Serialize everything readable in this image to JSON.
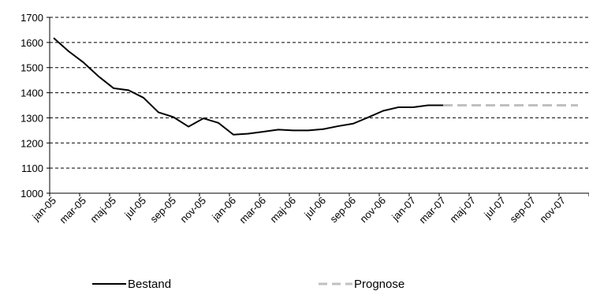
{
  "chart_data": {
    "type": "line",
    "title": "",
    "xlabel": "",
    "ylabel": "",
    "ylim": [
      1000,
      1700
    ],
    "yticks": [
      1000,
      1100,
      1200,
      1300,
      1400,
      1500,
      1600,
      1700
    ],
    "grid": "horizontal dashed",
    "legend_position": "bottom",
    "x_tick_labels": [
      "jan-05",
      "mar-05",
      "maj-05",
      "jul-05",
      "sep-05",
      "nov-05",
      "jan-06",
      "mar-06",
      "maj-06",
      "jul-06",
      "sep-06",
      "nov-06",
      "jan-07",
      "mar-07",
      "maj-07",
      "jul-07",
      "sep-07",
      "nov-07"
    ],
    "series": [
      {
        "name": "Bestand",
        "color": "#000000",
        "style": "solid",
        "x": [
          "jan-05",
          "feb-05",
          "mar-05",
          "apr-05",
          "maj-05",
          "jun-05",
          "jul-05",
          "aug-05",
          "sep-05",
          "okt-05",
          "nov-05",
          "dec-05",
          "jan-06",
          "feb-06",
          "mar-06",
          "apr-06",
          "maj-06",
          "jun-06",
          "jul-06",
          "aug-06",
          "sep-06",
          "okt-06",
          "nov-06",
          "dec-06",
          "jan-07",
          "feb-07",
          "mar-07"
        ],
        "values": [
          1618,
          1565,
          1520,
          1465,
          1418,
          1410,
          1380,
          1322,
          1303,
          1265,
          1298,
          1280,
          1233,
          1237,
          1245,
          1253,
          1250,
          1250,
          1255,
          1267,
          1277,
          1302,
          1328,
          1342,
          1342,
          1350,
          1350
        ]
      },
      {
        "name": "Prognose",
        "color": "#c0c0c0",
        "style": "dashed",
        "x": [
          "mar-07",
          "apr-07",
          "maj-07",
          "jun-07",
          "jul-07",
          "aug-07",
          "sep-07",
          "okt-07",
          "nov-07",
          "dec-07"
        ],
        "values": [
          1350,
          1350,
          1350,
          1350,
          1350,
          1350,
          1350,
          1350,
          1350,
          1350
        ]
      }
    ]
  }
}
